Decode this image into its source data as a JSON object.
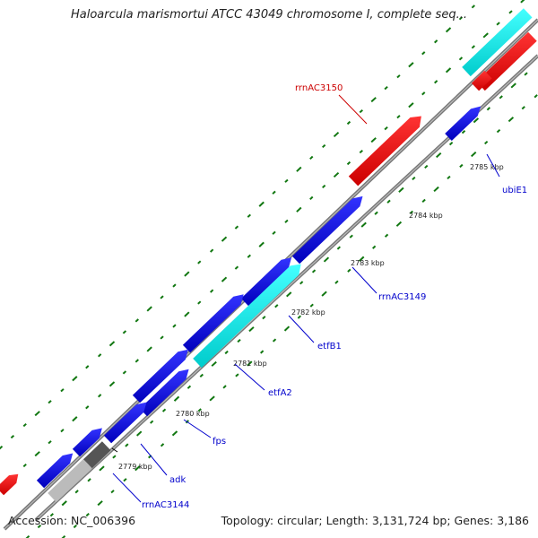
{
  "title": "Haloarcula marismortui ATCC 43049 chromosome I, complete seq...",
  "footer": {
    "accession": "Accession: NC_006396",
    "topology": "Topology: circular; Length: 3,131,724 bp; Genes: 3,186"
  },
  "ticks": [
    {
      "label": "2779 kbp"
    },
    {
      "label": "2780 kbp"
    },
    {
      "label": "2781 kbp"
    },
    {
      "label": "2782 kbp"
    },
    {
      "label": "2783 kbp"
    },
    {
      "label": "2784 kbp"
    },
    {
      "label": "2785 kbp"
    }
  ],
  "gene_labels": [
    {
      "text": "rrnAC3150",
      "color": "#cc0000"
    },
    {
      "text": "ubiE1",
      "color": "#0000cc"
    },
    {
      "text": "rrnAC3149",
      "color": "#0000cc"
    },
    {
      "text": "etfB1",
      "color": "#0000cc"
    },
    {
      "text": "etfA2",
      "color": "#0000cc"
    },
    {
      "text": "fps",
      "color": "#0000cc"
    },
    {
      "text": "adk",
      "color": "#0000cc"
    },
    {
      "text": "rrnAC3144",
      "color": "#0000cc"
    }
  ],
  "colors": {
    "forward_cds": "#0000dd",
    "rrna": "#ee0000",
    "highlight": "#00eeee",
    "backbone": "#888888",
    "gc_marks": "#117711"
  }
}
